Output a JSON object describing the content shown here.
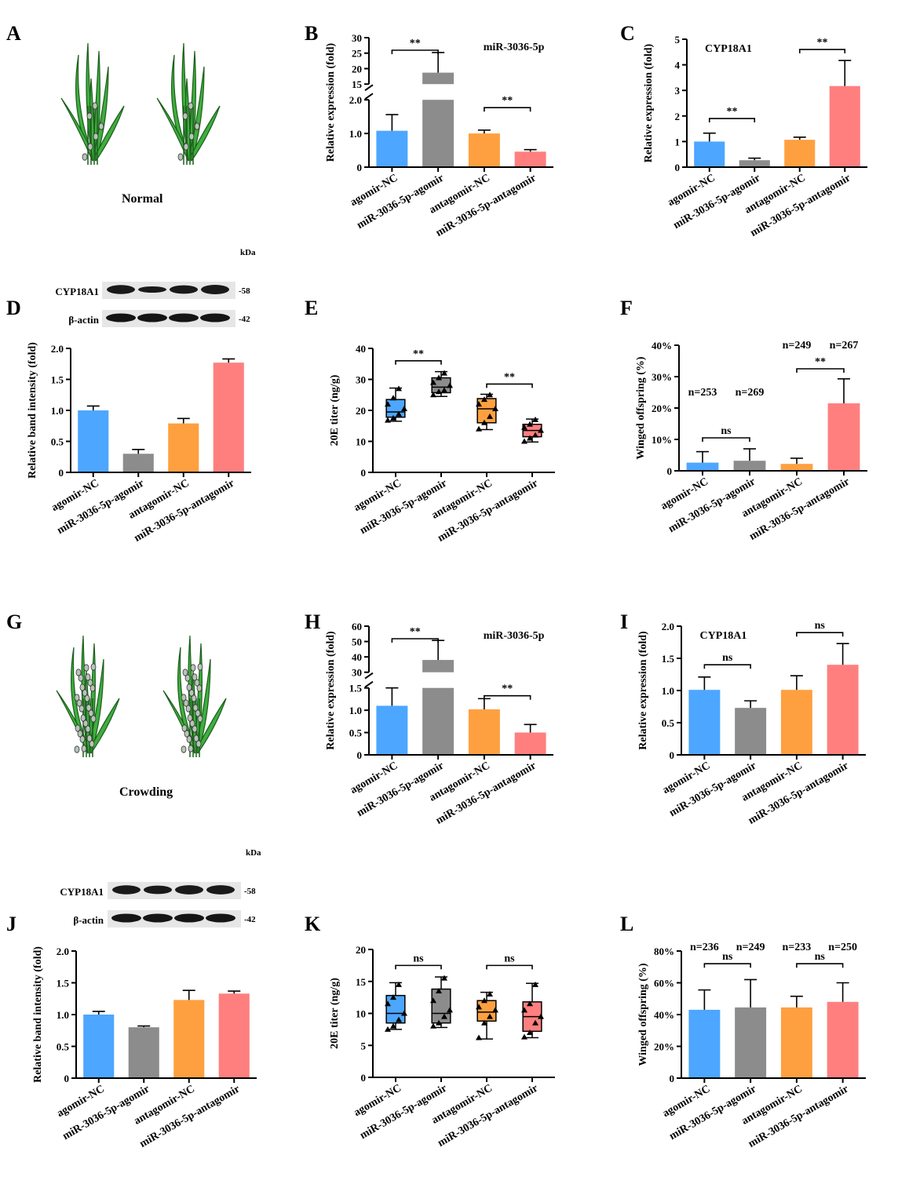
{
  "colors": {
    "blue": "#4da6ff",
    "gray": "#8c8c8c",
    "orange": "#ffa040",
    "red": "#ff7f7f",
    "plant": "#3fae3f",
    "plant_dark": "#1c5e1c"
  },
  "panel_letters": [
    "A",
    "B",
    "C",
    "D",
    "E",
    "F",
    "G",
    "H",
    "I",
    "J",
    "K",
    "L"
  ],
  "plant_labels": {
    "normal": "Normal",
    "crowding": "Crowding"
  },
  "categories": [
    "agomir-NC",
    "miR-3036-5p-agomir",
    "antagomir-NC",
    "miR-3036-5p-antagomir"
  ],
  "western_top": {
    "labels": [
      "CYP18A1",
      "β-actin"
    ],
    "unit": "kDa",
    "markers": [
      "-58",
      "-42"
    ]
  },
  "western_bottom": {
    "labels": [
      "CYP18A1",
      "β-actin"
    ],
    "unit": "kDa",
    "markers": [
      "-58",
      "-42"
    ]
  },
  "chart_data": [
    {
      "id": "B",
      "type": "bar",
      "title": "miR-3036-5p",
      "ylabel": "Relative expression (fold)",
      "broken_axis": true,
      "ylim_lower": [
        0,
        2
      ],
      "ylim_upper": [
        15,
        30
      ],
      "yticks_lower": [
        "0",
        "1.0",
        "2.0"
      ],
      "yticks_upper": [
        "15",
        "20",
        "25",
        "30"
      ],
      "values": [
        1.08,
        18.7,
        1.0,
        0.46
      ],
      "errors": [
        0.48,
        6.5,
        0.1,
        0.06
      ],
      "sig": [
        {
          "pair": [
            0,
            1
          ],
          "label": "**"
        },
        {
          "pair": [
            2,
            3
          ],
          "label": "**"
        }
      ]
    },
    {
      "id": "C",
      "type": "bar",
      "title": "CYP18A1",
      "ylabel": "Relative expression (fold)",
      "ylim": [
        0,
        5
      ],
      "yticks": [
        "0",
        "1",
        "2",
        "3",
        "4",
        "5"
      ],
      "values": [
        1.0,
        0.27,
        1.07,
        3.17
      ],
      "errors": [
        0.33,
        0.08,
        0.1,
        1.0
      ],
      "sig": [
        {
          "pair": [
            0,
            1
          ],
          "label": "**"
        },
        {
          "pair": [
            2,
            3
          ],
          "label": "**"
        }
      ]
    },
    {
      "id": "D",
      "type": "bar",
      "title": "",
      "ylabel": "Relative band intensity (fold)",
      "ylim": [
        0,
        2.0
      ],
      "yticks": [
        "0",
        "0.5",
        "1.0",
        "1.5",
        "2.0"
      ],
      "values": [
        1.0,
        0.3,
        0.79,
        1.77
      ],
      "errors": [
        0.07,
        0.07,
        0.08,
        0.06
      ],
      "sig": []
    },
    {
      "id": "E",
      "type": "box",
      "ylabel": "20E titer (ng/g)",
      "ylim": [
        0,
        40
      ],
      "yticks": [
        "0",
        "10",
        "20",
        "30",
        "40"
      ],
      "boxes": [
        {
          "min": 16.5,
          "q1": 17.8,
          "median": 19.5,
          "q3": 23.5,
          "max": 27.2,
          "points": [
            16.8,
            17.5,
            18.8,
            20.5,
            22,
            24,
            27
          ]
        },
        {
          "min": 24.5,
          "q1": 25.7,
          "median": 27.5,
          "q3": 30.5,
          "max": 32.5,
          "points": [
            25,
            26,
            26.5,
            28,
            29,
            30.5,
            32
          ]
        },
        {
          "min": 13.8,
          "q1": 16,
          "median": 20.5,
          "q3": 23.8,
          "max": 25.2,
          "points": [
            14,
            16,
            18,
            20.5,
            22,
            23.5,
            25
          ]
        },
        {
          "min": 9.8,
          "q1": 11.5,
          "median": 13.5,
          "q3": 15.5,
          "max": 17.2,
          "points": [
            10,
            11,
            12,
            13.5,
            14.5,
            15.5,
            17
          ]
        }
      ],
      "sig": [
        {
          "pair": [
            0,
            1
          ],
          "label": "**"
        },
        {
          "pair": [
            2,
            3
          ],
          "label": "**"
        }
      ]
    },
    {
      "id": "F",
      "type": "bar",
      "ylabel": "Winged offspring (%)",
      "ylim": [
        0,
        40
      ],
      "yticks": [
        "0",
        "10%",
        "20%",
        "30%",
        "40%"
      ],
      "values": [
        2.6,
        3.2,
        2.2,
        21.5
      ],
      "errors": [
        3.5,
        3.8,
        1.8,
        7.8
      ],
      "n_labels": [
        "n=253",
        "n=269",
        "n=249",
        "n=267"
      ],
      "sig": [
        {
          "pair": [
            0,
            1
          ],
          "label": "ns"
        },
        {
          "pair": [
            2,
            3
          ],
          "label": "**"
        }
      ]
    },
    {
      "id": "H",
      "type": "bar",
      "title": "miR-3036-5p",
      "ylabel": "Relative expression (fold)",
      "broken_axis": true,
      "ylim_lower": [
        0,
        1.5
      ],
      "ylim_upper": [
        30,
        60
      ],
      "yticks_lower": [
        "0",
        "0.5",
        "1.0",
        "1.5"
      ],
      "yticks_upper": [
        "30",
        "40",
        "50",
        "60"
      ],
      "values": [
        1.1,
        38,
        1.02,
        0.5
      ],
      "errors": [
        0.48,
        12.7,
        0.24,
        0.18
      ],
      "sig": [
        {
          "pair": [
            0,
            1
          ],
          "label": "**"
        },
        {
          "pair": [
            2,
            3
          ],
          "label": "**"
        }
      ]
    },
    {
      "id": "I",
      "type": "bar",
      "title": "CYP18A1",
      "ylabel": "Relative expression (fold)",
      "ylim": [
        0,
        2.0
      ],
      "yticks": [
        "0",
        "0.5",
        "1.0",
        "1.5",
        "2.0"
      ],
      "values": [
        1.01,
        0.73,
        1.01,
        1.4
      ],
      "errors": [
        0.2,
        0.11,
        0.22,
        0.33
      ],
      "sig": [
        {
          "pair": [
            0,
            1
          ],
          "label": "ns"
        },
        {
          "pair": [
            2,
            3
          ],
          "label": "ns"
        }
      ]
    },
    {
      "id": "J",
      "type": "bar",
      "ylabel": "Relative band intensity (fold)",
      "ylim": [
        0,
        2.0
      ],
      "yticks": [
        "0",
        "0.5",
        "1.0",
        "1.5",
        "2.0"
      ],
      "values": [
        1.0,
        0.8,
        1.23,
        1.33
      ],
      "errors": [
        0.05,
        0.02,
        0.15,
        0.04
      ],
      "sig": []
    },
    {
      "id": "K",
      "type": "box",
      "ylabel": "20E titer (ng/g)",
      "ylim": [
        0,
        20
      ],
      "yticks": [
        "0",
        "5",
        "10",
        "15",
        "20"
      ],
      "boxes": [
        {
          "min": 7.5,
          "q1": 8.5,
          "median": 10,
          "q3": 12.8,
          "max": 14.8,
          "points": [
            7.5,
            8,
            9,
            10,
            11.5,
            12.5,
            14.5
          ]
        },
        {
          "min": 7.8,
          "q1": 8.5,
          "median": 10,
          "q3": 13.8,
          "max": 15.7,
          "points": [
            8,
            8.5,
            9.5,
            10.5,
            12,
            13.5,
            15.5
          ]
        },
        {
          "min": 6,
          "q1": 8.8,
          "median": 10.2,
          "q3": 12,
          "max": 13.3,
          "points": [
            6.2,
            8.5,
            9.5,
            10.5,
            11,
            12,
            13
          ]
        },
        {
          "min": 6.2,
          "q1": 7.2,
          "median": 9.5,
          "q3": 11.8,
          "max": 14.7,
          "points": [
            6.3,
            7,
            8.5,
            9.5,
            10.5,
            11.5,
            14.5
          ]
        }
      ],
      "sig": [
        {
          "pair": [
            0,
            1
          ],
          "label": "ns"
        },
        {
          "pair": [
            2,
            3
          ],
          "label": "ns"
        }
      ]
    },
    {
      "id": "L",
      "type": "bar",
      "ylabel": "Winged offspring (%)",
      "ylim": [
        0,
        80
      ],
      "yticks": [
        "0",
        "20%",
        "40%",
        "60%",
        "80%"
      ],
      "values": [
        43,
        44.5,
        44.5,
        48
      ],
      "errors": [
        12.5,
        17.5,
        7,
        12
      ],
      "n_labels": [
        "n=236",
        "n=249",
        "n=233",
        "n=250"
      ],
      "sig": [
        {
          "pair": [
            0,
            1
          ],
          "label": "ns"
        },
        {
          "pair": [
            2,
            3
          ],
          "label": "ns"
        }
      ]
    }
  ]
}
